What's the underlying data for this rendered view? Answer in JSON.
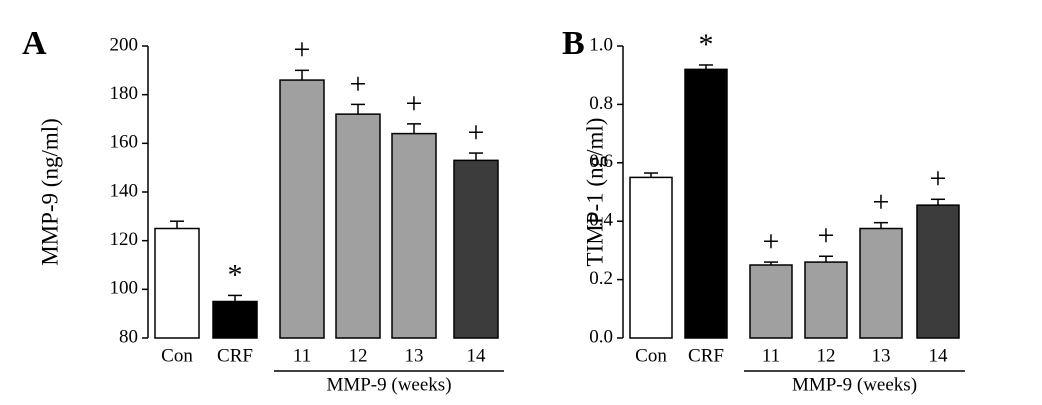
{
  "chart_data": [
    {
      "type": "bar",
      "panel": "A",
      "ylabel": "MMP-9 (ng/ml)",
      "categories": [
        "Con",
        "CRF",
        "11",
        "12",
        "13",
        "14"
      ],
      "values": [
        125,
        95,
        186,
        172,
        164,
        153
      ],
      "errors": [
        3,
        2.5,
        4,
        4,
        4,
        3
      ],
      "colors": [
        "#ffffff",
        "#000000",
        "#a0a0a0",
        "#a0a0a0",
        "#a0a0a0",
        "#3c3c3c"
      ],
      "annotations": [
        null,
        "*",
        "+",
        "+",
        "+",
        "+"
      ],
      "group_label": "MMP-9 (weeks)",
      "ylim": [
        80,
        200
      ],
      "yticks": [
        80,
        100,
        120,
        140,
        160,
        180,
        200
      ]
    },
    {
      "type": "bar",
      "panel": "B",
      "ylabel": "TIMP-1 (ng/ml)",
      "categories": [
        "Con",
        "CRF",
        "11",
        "12",
        "13",
        "14"
      ],
      "values": [
        0.55,
        0.92,
        0.25,
        0.26,
        0.375,
        0.455
      ],
      "errors": [
        0.015,
        0.015,
        0.01,
        0.02,
        0.02,
        0.02
      ],
      "colors": [
        "#ffffff",
        "#000000",
        "#a0a0a0",
        "#a0a0a0",
        "#a0a0a0",
        "#3c3c3c"
      ],
      "annotations": [
        null,
        "*",
        "+",
        "+",
        "+",
        "+"
      ],
      "group_label": "MMP-9 (weeks)",
      "ylim": [
        0,
        1.0
      ],
      "yticks": [
        {
          "value": 0,
          "label": "0.0"
        },
        {
          "value": 0.2,
          "label": "0.2"
        },
        {
          "value": 0.4,
          "label": "0.4"
        },
        {
          "value": 0.6,
          "label": "0.6"
        },
        {
          "value": 0.8,
          "label": "0.8"
        },
        {
          "value": 1.0,
          "label": "1.0"
        }
      ]
    }
  ]
}
